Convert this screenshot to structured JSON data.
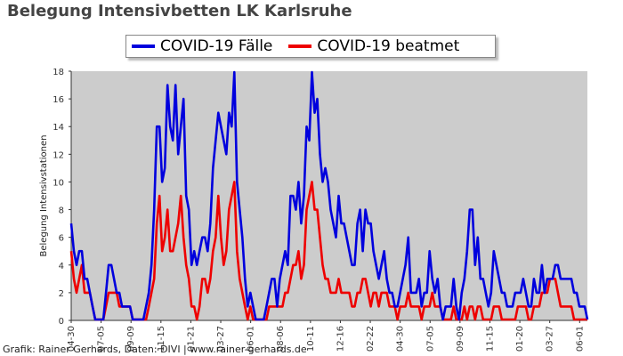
{
  "header": {
    "title": "Belegung Intensivbetten LK Karlsruhe"
  },
  "credit": "Grafik: Rainer Gerhards, Daten: DIVI | www.rainer-gerhards.de",
  "chart_data": {
    "type": "line",
    "title": "Belegung Intensivbetten LK Karlsruhe",
    "ylabel": "Belegung Intensivstationen",
    "xlabel": "",
    "ylim": [
      0,
      18
    ],
    "yticks": [
      0,
      2,
      4,
      6,
      8,
      10,
      12,
      14,
      16,
      18
    ],
    "xticks": [
      "04-30",
      "07-05",
      "09-09",
      "11-15",
      "01-21",
      "03-27",
      "06-01",
      "08-06",
      "10-11",
      "12-16",
      "02-22",
      "04-30",
      "07-05",
      "09-09",
      "11-15",
      "01-20",
      "03-27",
      "06-01"
    ],
    "legend_position": "top-center",
    "background": "#cccccc",
    "series": [
      {
        "name": "COVID-19 Fälle",
        "color": "#0000dd",
        "values": [
          7,
          5,
          4,
          5,
          5,
          3,
          3,
          2,
          1,
          0,
          0,
          0,
          0,
          2,
          4,
          4,
          3,
          2,
          2,
          1,
          1,
          1,
          1,
          0,
          0,
          0,
          0,
          0,
          1,
          2,
          4,
          8,
          14,
          14,
          10,
          11,
          17,
          14,
          13,
          17,
          12,
          14,
          16,
          9,
          8,
          4,
          5,
          4,
          5,
          6,
          6,
          5,
          7,
          11,
          13,
          15,
          14,
          13,
          12,
          15,
          14,
          18,
          10,
          8,
          6,
          3,
          1,
          2,
          1,
          0,
          0,
          0,
          0,
          1,
          2,
          3,
          3,
          1,
          3,
          4,
          5,
          4,
          9,
          9,
          8,
          10,
          7,
          9,
          14,
          13,
          18,
          15,
          16,
          12,
          10,
          11,
          10,
          8,
          7,
          6,
          9,
          7,
          7,
          6,
          5,
          4,
          4,
          7,
          8,
          5,
          8,
          7,
          7,
          5,
          4,
          3,
          4,
          5,
          3,
          2,
          2,
          1,
          1,
          2,
          3,
          4,
          6,
          2,
          2,
          2,
          3,
          1,
          2,
          2,
          5,
          3,
          2,
          3,
          1,
          0,
          1,
          1,
          1,
          3,
          1,
          0,
          2,
          3,
          5,
          8,
          8,
          4,
          6,
          3,
          3,
          2,
          1,
          2,
          5,
          4,
          3,
          2,
          2,
          1,
          1,
          1,
          2,
          2,
          2,
          3,
          2,
          1,
          1,
          3,
          2,
          2,
          4,
          2,
          3,
          3,
          3,
          4,
          4,
          3,
          3,
          3,
          3,
          3,
          2,
          2,
          1,
          1,
          1,
          0
        ]
      },
      {
        "name": "COVID-19 beatmet",
        "color": "#ee0000",
        "values": [
          5,
          3,
          2,
          3,
          4,
          2,
          2,
          2,
          1,
          0,
          0,
          0,
          0,
          1,
          2,
          2,
          2,
          2,
          1,
          1,
          1,
          1,
          1,
          0,
          0,
          0,
          0,
          0,
          0,
          1,
          2,
          3,
          7,
          9,
          5,
          6,
          8,
          5,
          5,
          6,
          7,
          9,
          6,
          4,
          3,
          1,
          1,
          0,
          1,
          3,
          3,
          2,
          3,
          5,
          6,
          9,
          6,
          4,
          5,
          8,
          9,
          10,
          5,
          3,
          2,
          1,
          0,
          1,
          0,
          0,
          0,
          0,
          0,
          0,
          1,
          1,
          1,
          1,
          1,
          1,
          2,
          2,
          3,
          4,
          4,
          5,
          3,
          4,
          8,
          9,
          10,
          8,
          8,
          6,
          4,
          3,
          3,
          2,
          2,
          2,
          3,
          2,
          2,
          2,
          2,
          1,
          1,
          2,
          2,
          3,
          3,
          2,
          1,
          2,
          2,
          1,
          2,
          2,
          2,
          1,
          1,
          1,
          0,
          1,
          1,
          1,
          2,
          1,
          1,
          1,
          1,
          0,
          1,
          1,
          1,
          2,
          1,
          1,
          1,
          0,
          0,
          0,
          0,
          1,
          0,
          0,
          0,
          1,
          0,
          1,
          1,
          0,
          1,
          1,
          0,
          0,
          0,
          0,
          1,
          1,
          1,
          0,
          0,
          0,
          0,
          0,
          0,
          1,
          1,
          1,
          1,
          0,
          0,
          1,
          1,
          1,
          2,
          2,
          2,
          3,
          3,
          3,
          2,
          1,
          1,
          1,
          1,
          1,
          0,
          0,
          0,
          0,
          0,
          0
        ]
      }
    ]
  }
}
